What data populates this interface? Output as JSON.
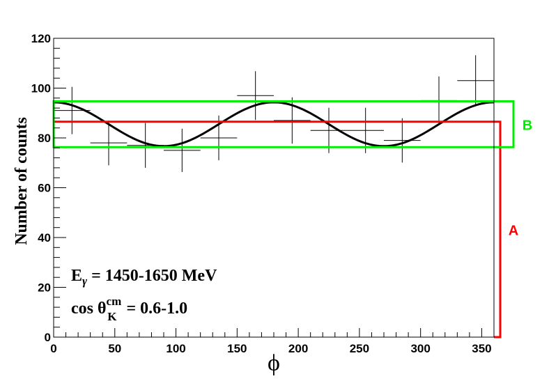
{
  "chart_data": {
    "type": "scatter",
    "xlabel": "ϕ",
    "ylabel": "Number of counts",
    "xlim": [
      0,
      360
    ],
    "ylim": [
      0,
      120
    ],
    "x_ticks": [
      "0",
      "50",
      "100",
      "150",
      "200",
      "250",
      "300",
      "350"
    ],
    "y_ticks": [
      "0",
      "20",
      "40",
      "60",
      "80",
      "100",
      "120"
    ],
    "series": [
      {
        "points": [
          {
            "x": 15,
            "y": 91,
            "xerr": 15,
            "yerr": 9.5
          },
          {
            "x": 45,
            "y": 78,
            "xerr": 15,
            "yerr": 9
          },
          {
            "x": 75,
            "y": 77,
            "xerr": 15,
            "yerr": 9
          },
          {
            "x": 105,
            "y": 75,
            "xerr": 15,
            "yerr": 8.7
          },
          {
            "x": 135,
            "y": 80,
            "xerr": 15,
            "yerr": 9
          },
          {
            "x": 165,
            "y": 97,
            "xerr": 15,
            "yerr": 9.8
          },
          {
            "x": 195,
            "y": 87,
            "xerr": 15,
            "yerr": 9.3
          },
          {
            "x": 225,
            "y": 83,
            "xerr": 15,
            "yerr": 9.1
          },
          {
            "x": 255,
            "y": 83,
            "xerr": 15,
            "yerr": 9.1
          },
          {
            "x": 285,
            "y": 79,
            "xerr": 15,
            "yerr": 8.9
          },
          {
            "x": 315,
            "y": 95,
            "xerr": 15,
            "yerr": 9.7
          },
          {
            "x": 345,
            "y": 103,
            "xerr": 15,
            "yerr": 10.2
          }
        ]
      }
    ],
    "fit_curve": {
      "type": "cosine",
      "mean": 85.5,
      "amplitude": 8.8,
      "frequency": 2
    },
    "annotations": {
      "line1_prefix": "E",
      "line1_sub": "γ",
      "line1_rest": " = 1450-1650 MeV",
      "line2_prefix": "cos  θ",
      "line2_sup": "cm",
      "line2_sub": "K",
      "line2_rest": " = 0.6-1.0"
    },
    "bracket_A": {
      "label": "A",
      "color": "#ff0000",
      "from": 0,
      "to": 86.5
    },
    "box_B": {
      "label": "B",
      "color": "#00ee00",
      "from": 76.3,
      "to": 94.7
    },
    "grid": false
  }
}
